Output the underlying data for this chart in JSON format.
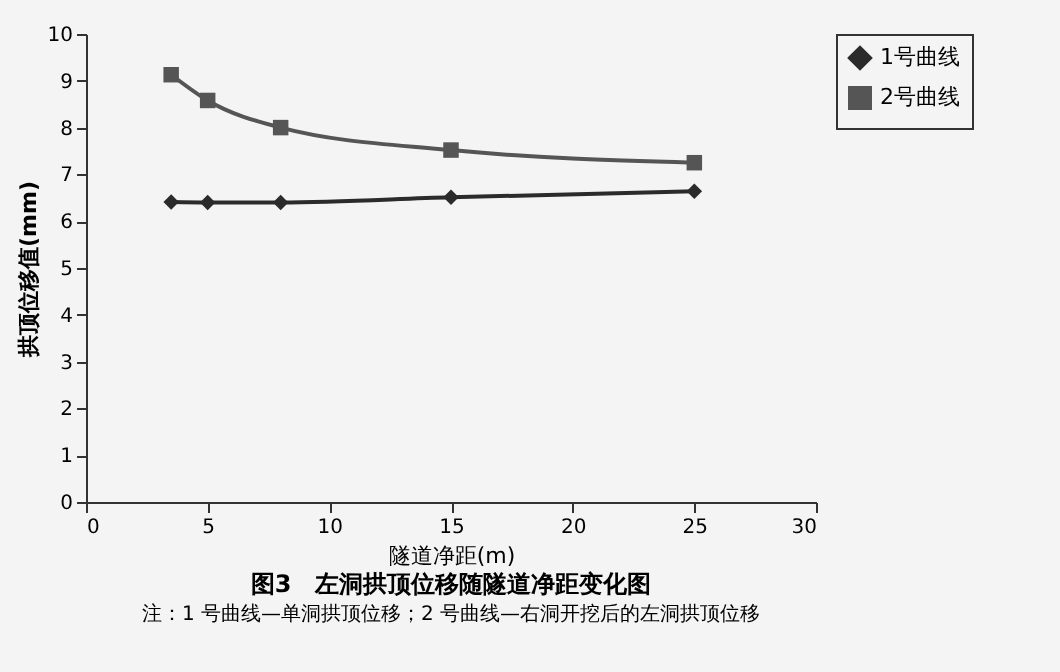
{
  "chart_data": {
    "type": "line",
    "title": "图3　左洞拱顶位移随隧道净距变化图",
    "xlabel": "隧道净距(m)",
    "ylabel": "拱顶位移值(mm)",
    "annotations": [
      "注：1 号曲线—单洞拱顶位移；2 号曲线—右洞开挖后的左洞拱顶位移"
    ],
    "x": [
      3.5,
      5,
      8,
      15,
      25
    ],
    "series": [
      {
        "name": "1号曲线",
        "color": "#2b2b2b",
        "marker": "diamond",
        "values": [
          6.41,
          6.4,
          6.4,
          6.51,
          6.64
        ]
      },
      {
        "name": "2号曲线",
        "color": "#555555",
        "marker": "square",
        "values": [
          9.13,
          8.58,
          8.0,
          7.52,
          7.25
        ]
      }
    ],
    "xlim": [
      0,
      30
    ],
    "xticks": [
      0,
      5,
      10,
      15,
      20,
      25,
      30
    ],
    "ylim": [
      0,
      10
    ],
    "yticks": [
      0,
      1,
      2,
      3,
      4,
      5,
      6,
      7,
      8,
      9,
      10
    ],
    "grid": false,
    "legend": "right",
    "line_style": "solid"
  }
}
